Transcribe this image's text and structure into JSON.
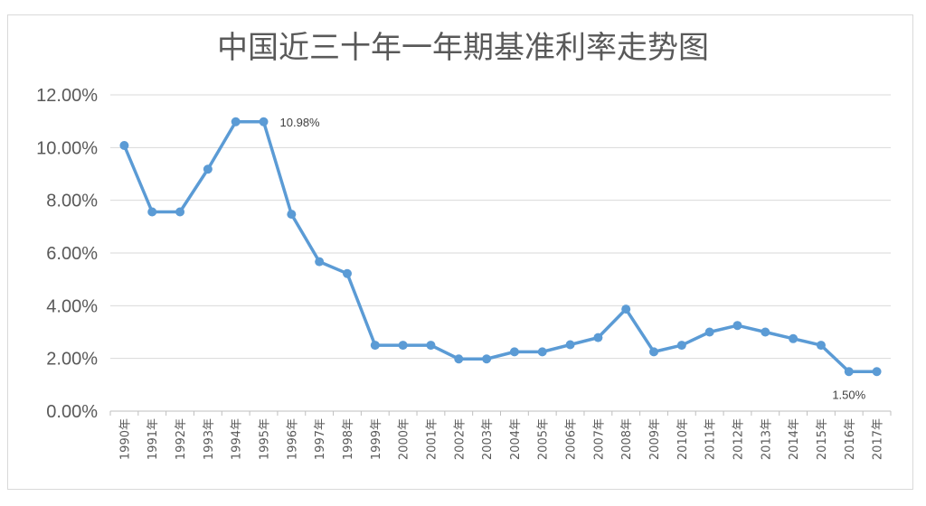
{
  "chart_data": {
    "type": "line",
    "title": "中国近三十年一年期基准利率走势图",
    "categories": [
      "1990年",
      "1991年",
      "1992年",
      "1993年",
      "1994年",
      "1995年",
      "1996年",
      "1997年",
      "1998年",
      "1999年",
      "2000年",
      "2001年",
      "2002年",
      "2003年",
      "2004年",
      "2005年",
      "2006年",
      "2007年",
      "2008年",
      "2009年",
      "2010年",
      "2011年",
      "2012年",
      "2013年",
      "2014年",
      "2015年",
      "2016年",
      "2017年"
    ],
    "series": [
      {
        "values": [
          10.08,
          7.56,
          7.56,
          9.18,
          10.98,
          10.98,
          7.47,
          5.67,
          5.22,
          2.5,
          2.5,
          2.5,
          1.98,
          1.98,
          2.25,
          2.25,
          2.52,
          2.79,
          3.87,
          2.25,
          2.5,
          3.0,
          3.25,
          3.0,
          2.75,
          2.5,
          1.5,
          1.5
        ],
        "color": "#5b9bd5"
      }
    ],
    "yticks": [
      "0.00%",
      "2.00%",
      "4.00%",
      "6.00%",
      "8.00%",
      "10.00%",
      "12.00%"
    ],
    "ylim": [
      0,
      12
    ],
    "grid": true,
    "legend": "none",
    "annotations": [
      {
        "index": 5,
        "text": "10.98%"
      },
      {
        "index": 26,
        "text": "1.50%"
      }
    ]
  }
}
